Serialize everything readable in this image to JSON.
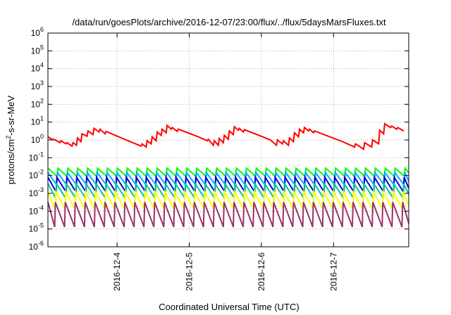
{
  "chart_data": {
    "type": "line",
    "title": "/data/run/goesPlots/archive/2016-12-07/23:00/flux/../flux/5daysMarsFluxes.txt",
    "xlabel": "Coordinated Universal Time (UTC)",
    "ylabel": "protons/cm2-s-sr-MeV",
    "ylabel_parts": {
      "pre": "protons/cm",
      "sup": "2",
      "post": "-s-sr-MeV"
    },
    "yscale": "log",
    "ylim": [
      1e-06,
      1000000.0
    ],
    "y_ticks": [
      {
        "value": 1e-06,
        "base": "10",
        "exp": "-6"
      },
      {
        "value": 1e-05,
        "base": "10",
        "exp": "-5"
      },
      {
        "value": 0.0001,
        "base": "10",
        "exp": "-4"
      },
      {
        "value": 0.001,
        "base": "10",
        "exp": "-3"
      },
      {
        "value": 0.01,
        "base": "10",
        "exp": "-2"
      },
      {
        "value": 0.1,
        "base": "10",
        "exp": "-1"
      },
      {
        "value": 1,
        "base": "10",
        "exp": "0"
      },
      {
        "value": 10,
        "base": "10",
        "exp": "1"
      },
      {
        "value": 100,
        "base": "10",
        "exp": "2"
      },
      {
        "value": 1000,
        "base": "10",
        "exp": "3"
      },
      {
        "value": 10000,
        "base": "10",
        "exp": "4"
      },
      {
        "value": 100000,
        "base": "10",
        "exp": "5"
      },
      {
        "value": 1000000,
        "base": "10",
        "exp": "6"
      }
    ],
    "xlim": [
      "2016-12-03 01:00",
      "2016-12-08 01:00"
    ],
    "x_ticks": [
      {
        "date": "2016-12-04 00:00",
        "label": "2016-12-4"
      },
      {
        "date": "2016-12-05 00:00",
        "label": "2016-12-5"
      },
      {
        "date": "2016-12-06 00:00",
        "label": "2016-12-6"
      },
      {
        "date": "2016-12-07 00:00",
        "label": "2016-12-7"
      }
    ],
    "grid": true,
    "series": [
      {
        "color": "#ff0000",
        "style": "envelope",
        "points": [
          [
            "2016-12-03 01:00",
            1.5
          ],
          [
            "2016-12-03 02:40",
            1.0
          ],
          [
            "2016-12-03 03:00",
            1.1
          ],
          [
            "2016-12-03 05:00",
            0.7
          ],
          [
            "2016-12-03 05:20",
            0.9
          ],
          [
            "2016-12-03 07:00",
            0.6
          ],
          [
            "2016-12-03 07:20",
            0.7
          ],
          [
            "2016-12-03 09:00",
            0.45
          ],
          [
            "2016-12-03 09:20",
            0.7
          ],
          [
            "2016-12-03 10:30",
            0.5
          ],
          [
            "2016-12-03 10:50",
            1.3
          ],
          [
            "2016-12-03 12:00",
            0.8
          ],
          [
            "2016-12-03 12:20",
            2.2
          ],
          [
            "2016-12-03 14:00",
            1.6
          ],
          [
            "2016-12-03 14:20",
            3.2
          ],
          [
            "2016-12-03 16:00",
            2.0
          ],
          [
            "2016-12-03 16:20",
            4.5
          ],
          [
            "2016-12-03 18:00",
            2.8
          ],
          [
            "2016-12-03 18:20",
            4.0
          ],
          [
            "2016-12-03 20:00",
            2.2
          ],
          [
            "2016-12-03 20:20",
            3.0
          ],
          [
            "2016-12-04 03:00",
            1.0
          ],
          [
            "2016-12-04 08:00",
            0.45
          ],
          [
            "2016-12-04 08:20",
            0.6
          ],
          [
            "2016-12-04 09:40",
            0.4
          ],
          [
            "2016-12-04 10:00",
            0.9
          ],
          [
            "2016-12-04 11:20",
            0.6
          ],
          [
            "2016-12-04 11:40",
            1.5
          ],
          [
            "2016-12-04 13:00",
            0.9
          ],
          [
            "2016-12-04 13:20",
            2.8
          ],
          [
            "2016-12-04 14:40",
            1.8
          ],
          [
            "2016-12-04 15:00",
            4.0
          ],
          [
            "2016-12-04 16:20",
            2.5
          ],
          [
            "2016-12-04 16:40",
            6.5
          ],
          [
            "2016-12-04 18:00",
            4.0
          ],
          [
            "2016-12-04 18:20",
            5.0
          ],
          [
            "2016-12-04 20:00",
            3.0
          ],
          [
            "2016-12-04 20:20",
            4.0
          ],
          [
            "2016-12-05 03:00",
            1.5
          ],
          [
            "2016-12-05 06:00",
            0.9
          ],
          [
            "2016-12-05 06:20",
            1.1
          ],
          [
            "2016-12-05 08:00",
            0.5
          ],
          [
            "2016-12-05 08:20",
            0.9
          ],
          [
            "2016-12-05 09:40",
            0.5
          ],
          [
            "2016-12-05 10:00",
            1.2
          ],
          [
            "2016-12-05 11:20",
            0.7
          ],
          [
            "2016-12-05 11:40",
            1.8
          ],
          [
            "2016-12-05 13:00",
            1.1
          ],
          [
            "2016-12-05 13:20",
            3.2
          ],
          [
            "2016-12-05 14:40",
            2.0
          ],
          [
            "2016-12-05 15:00",
            5.5
          ],
          [
            "2016-12-05 16:20",
            3.5
          ],
          [
            "2016-12-05 16:40",
            4.5
          ],
          [
            "2016-12-05 18:00",
            2.8
          ],
          [
            "2016-12-05 18:20",
            3.8
          ],
          [
            "2016-12-06 03:00",
            1.0
          ],
          [
            "2016-12-06 05:00",
            0.5
          ],
          [
            "2016-12-06 05:20",
            1.0
          ],
          [
            "2016-12-06 07:00",
            0.6
          ],
          [
            "2016-12-06 07:20",
            0.9
          ],
          [
            "2016-12-06 09:00",
            0.5
          ],
          [
            "2016-12-06 09:20",
            1.3
          ],
          [
            "2016-12-06 10:40",
            0.8
          ],
          [
            "2016-12-06 11:00",
            2.5
          ],
          [
            "2016-12-06 12:20",
            1.5
          ],
          [
            "2016-12-06 12:40",
            4.0
          ],
          [
            "2016-12-06 14:00",
            2.5
          ],
          [
            "2016-12-06 14:20",
            5.0
          ],
          [
            "2016-12-06 15:40",
            3.2
          ],
          [
            "2016-12-06 16:00",
            4.0
          ],
          [
            "2016-12-06 17:20",
            2.5
          ],
          [
            "2016-12-06 17:40",
            3.2
          ],
          [
            "2016-12-07 03:00",
            0.8
          ],
          [
            "2016-12-07 07:00",
            0.4
          ],
          [
            "2016-12-07 07:20",
            0.6
          ],
          [
            "2016-12-07 10:00",
            0.3
          ],
          [
            "2016-12-07 10:20",
            0.7
          ],
          [
            "2016-12-07 12:40",
            0.4
          ],
          [
            "2016-12-07 13:00",
            1.0
          ],
          [
            "2016-12-07 15:00",
            0.6
          ],
          [
            "2016-12-07 15:20",
            3.5
          ],
          [
            "2016-12-07 16:40",
            2.2
          ],
          [
            "2016-12-07 17:00",
            8.0
          ],
          [
            "2016-12-07 19:00",
            5.0
          ],
          [
            "2016-12-07 19:20",
            6.0
          ],
          [
            "2016-12-07 21:00",
            4.0
          ],
          [
            "2016-12-07 21:20",
            5.0
          ],
          [
            "2016-12-07 23:20",
            3.2
          ]
        ]
      },
      {
        "color": "#00ff00",
        "style": "sawtooth",
        "peak": 0.026,
        "trough": 0.009,
        "phase": 0.0
      },
      {
        "color": "#00aaff",
        "style": "sawtooth",
        "peak": 0.015,
        "trough": 0.003,
        "phase": 0.05
      },
      {
        "color": "#0000dd",
        "style": "sawtooth",
        "peak": 0.008,
        "trough": 0.0012,
        "phase": 0.1
      },
      {
        "color": "#00cc88",
        "style": "sawtooth",
        "peak": 0.0035,
        "trough": 0.00055,
        "phase": 0.15
      },
      {
        "color": "#ffff00",
        "style": "sawtooth",
        "peak": 0.0012,
        "trough": 0.00013,
        "phase": 0.2
      },
      {
        "color": "#993366",
        "style": "sawtooth",
        "peak": 0.00032,
        "trough": 1.3e-05,
        "phase": 0.25
      }
    ],
    "sawtooth_period_hours": 3.3
  }
}
